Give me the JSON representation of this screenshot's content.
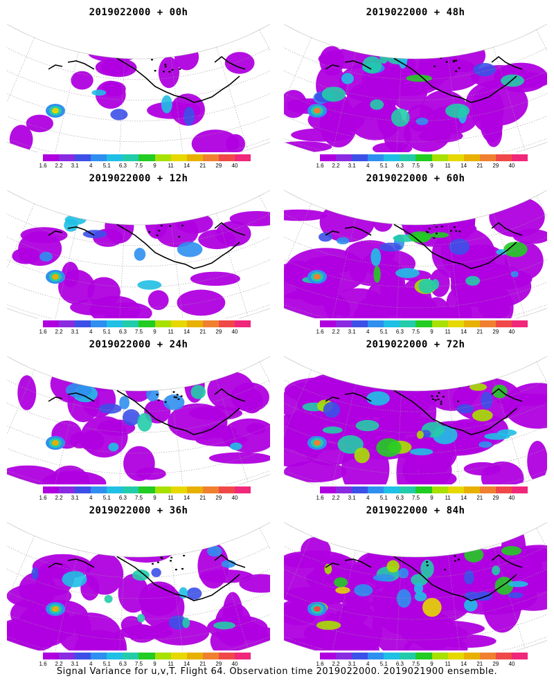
{
  "colorbar": {
    "labels": [
      "1.6",
      "2.2",
      "3.1",
      "4",
      "5.1",
      "6.3",
      "7.5",
      "9",
      "11",
      "14",
      "21",
      "29",
      "40"
    ],
    "colors": [
      "#b000e0",
      "#8a2be2",
      "#3c50e8",
      "#2f8ff0",
      "#1fbfe6",
      "#22ccaa",
      "#22cc22",
      "#a8e000",
      "#e6d800",
      "#e8b000",
      "#f08030",
      "#f04848",
      "#f0287a"
    ]
  },
  "panels": [
    {
      "title": "2019022000 + 00h",
      "column": "left",
      "intensity": 0.12
    },
    {
      "title": "2019022000 + 48h",
      "column": "right",
      "intensity": 0.55
    },
    {
      "title": "2019022000 + 12h",
      "column": "left",
      "intensity": 0.22
    },
    {
      "title": "2019022000 + 60h",
      "column": "right",
      "intensity": 0.65
    },
    {
      "title": "2019022000 + 24h",
      "column": "left",
      "intensity": 0.35
    },
    {
      "title": "2019022000 + 72h",
      "column": "right",
      "intensity": 0.78
    },
    {
      "title": "2019022000 + 36h",
      "column": "left",
      "intensity": 0.45
    },
    {
      "title": "2019022000 + 84h",
      "column": "right",
      "intensity": 0.9
    }
  ],
  "footer": "Signal Variance for u,v,T. Flight 64. Observation time 2019022000. 2019021900 ensemble."
}
